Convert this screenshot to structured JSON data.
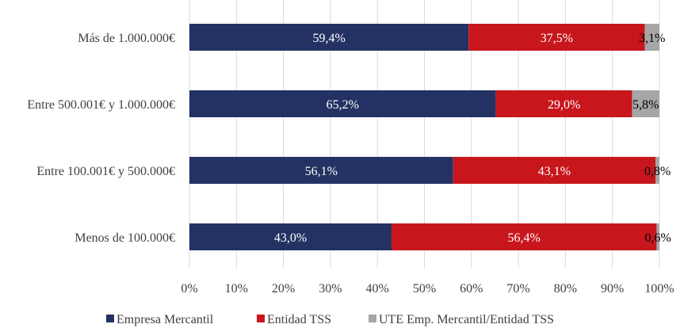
{
  "chart_data": {
    "type": "bar",
    "orientation": "horizontal",
    "stacked": true,
    "percent": true,
    "categories": [
      "Más de 1.000.000€",
      "Entre 500.001€ y 1.000.000€",
      "Entre 100.001€ y 500.000€",
      "Menos de 100.000€"
    ],
    "series": [
      {
        "name": "Empresa Mercantil",
        "color": "#243263",
        "label_color": "#ffffff",
        "values": [
          59.4,
          65.2,
          56.1,
          43.0
        ],
        "labels": [
          "59,4%",
          "65,2%",
          "56,1%",
          "43,0%"
        ]
      },
      {
        "name": "Entidad TSS",
        "color": "#c8161d",
        "label_color": "#ffffff",
        "values": [
          37.5,
          29.0,
          43.1,
          56.4
        ],
        "labels": [
          "37,5%",
          "29,0%",
          "43,1%",
          "56,4%"
        ]
      },
      {
        "name": "UTE Emp. Mercantil/Entidad TSS",
        "color": "#a6a6a6",
        "label_color": "#000000",
        "values": [
          3.1,
          5.8,
          0.8,
          0.6
        ],
        "labels": [
          "3,1%",
          "5,8%",
          "0,8%",
          "0,6%"
        ]
      }
    ],
    "xlim": [
      0,
      100
    ],
    "xticks": [
      "0%",
      "10%",
      "20%",
      "30%",
      "40%",
      "50%",
      "60%",
      "70%",
      "80%",
      "90%",
      "100%"
    ],
    "grid": "vertical",
    "legend": "bottom"
  }
}
